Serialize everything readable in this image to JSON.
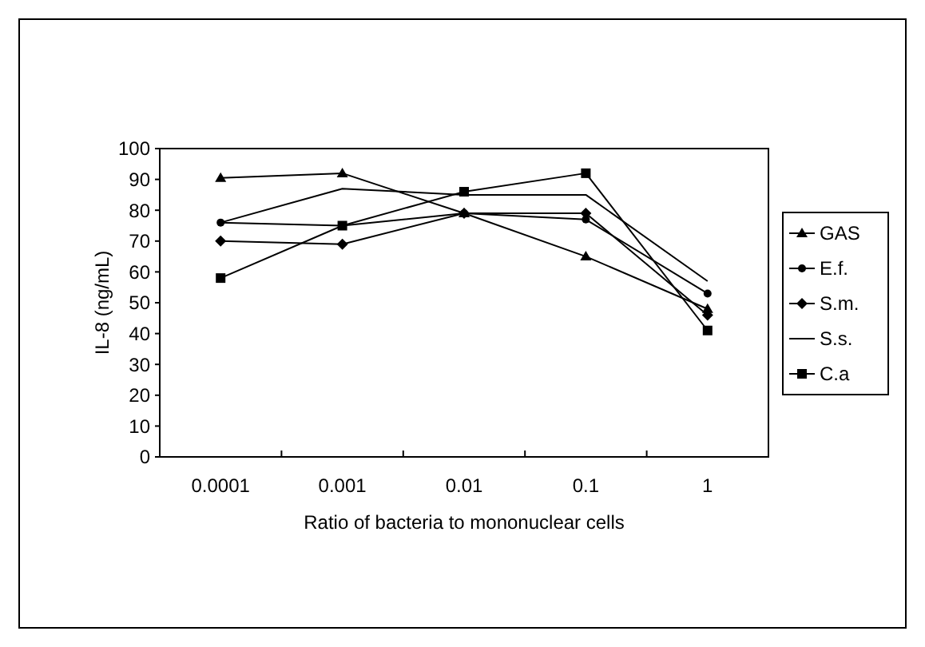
{
  "chart_data": {
    "type": "line",
    "xlabel": "Ratio of bacteria to mononuclear cells",
    "ylabel": "IL-8 (ng/mL)",
    "categories": [
      "0.0001",
      "0.001",
      "0.01",
      "0.1",
      "1"
    ],
    "ylim": [
      0,
      100
    ],
    "yticks": [
      0,
      10,
      20,
      30,
      40,
      50,
      60,
      70,
      80,
      90,
      100
    ],
    "grid": false,
    "legend": "right",
    "series": [
      {
        "name": "GAS",
        "color": "#000000",
        "marker": "triangle",
        "values": [
          90.5,
          92,
          79,
          65,
          48
        ]
      },
      {
        "name": "E.f.",
        "color": "#000000",
        "marker": "circle",
        "values": [
          76,
          75,
          79,
          77,
          53
        ]
      },
      {
        "name": "S.m.",
        "color": "#000000",
        "marker": "diamond",
        "values": [
          70,
          69,
          79,
          79,
          46
        ]
      },
      {
        "name": "S.s.",
        "color": "#000000",
        "marker": "none",
        "values": [
          76,
          87,
          85,
          85,
          57
        ]
      },
      {
        "name": "C.a",
        "color": "#000000",
        "marker": "square",
        "values": [
          58,
          75,
          86,
          92,
          41
        ]
      }
    ]
  }
}
